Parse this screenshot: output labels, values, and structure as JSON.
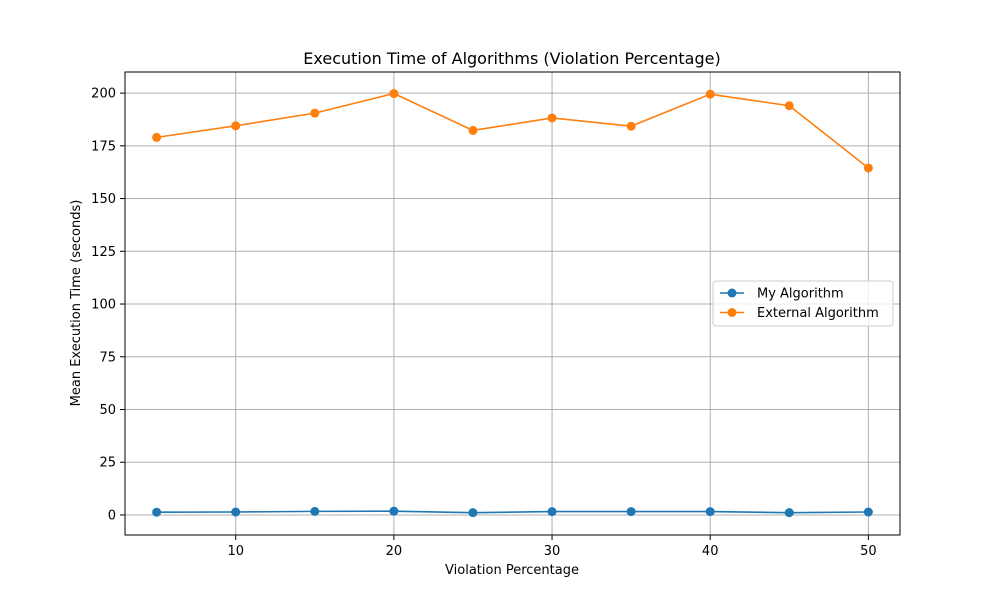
{
  "chart_data": {
    "type": "line",
    "title": "Execution Time of Algorithms (Violation Percentage)",
    "xlabel": "Violation Percentage",
    "ylabel": "Mean Execution Time (seconds)",
    "x": [
      5,
      10,
      15,
      20,
      25,
      30,
      35,
      40,
      45,
      50
    ],
    "xlim": [
      3.0,
      52.0
    ],
    "ylim": [
      -9.5,
      210.0
    ],
    "xticks": [
      10,
      20,
      30,
      40,
      50
    ],
    "yticks": [
      0,
      25,
      50,
      75,
      100,
      125,
      150,
      175,
      200
    ],
    "grid": true,
    "legend_position": "center-right",
    "series": [
      {
        "name": "My Algorithm",
        "color": "#1f77b4",
        "marker": "circle",
        "values": [
          1.3,
          1.4,
          1.7,
          1.8,
          1.1,
          1.6,
          1.6,
          1.6,
          1.1,
          1.4
        ]
      },
      {
        "name": "External Algorithm",
        "color": "#ff7f0e",
        "marker": "circle",
        "values": [
          179.0,
          184.5,
          190.5,
          199.8,
          182.3,
          188.2,
          184.3,
          199.5,
          194.0,
          164.5
        ]
      }
    ]
  }
}
